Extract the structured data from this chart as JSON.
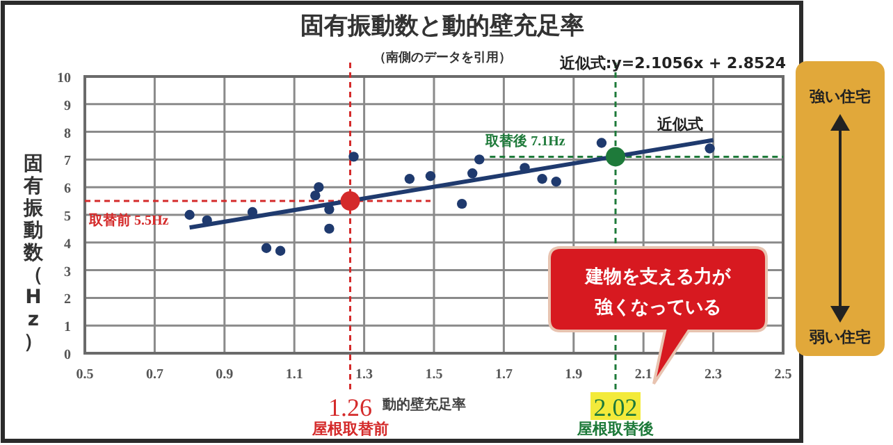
{
  "chart_data": {
    "type": "scatter",
    "title": "固有振動数と動的壁充足率",
    "subtitle": "（南側のデータを引用）",
    "xlabel": "動的壁充足率",
    "ylabel": "固有振動数（Hz）",
    "xlim": [
      0.5,
      2.5
    ],
    "xticks": [
      0.5,
      0.7,
      0.9,
      1.1,
      1.3,
      1.5,
      1.7,
      1.9,
      2.1,
      2.3,
      2.5
    ],
    "ylim": [
      0,
      10
    ],
    "yticks": [
      0,
      1,
      2,
      3,
      4,
      5,
      6,
      7,
      8,
      9,
      10
    ],
    "grid": true,
    "marker": "circle",
    "series": [
      {
        "color": "#1f3a6e",
        "x": [
          0.8,
          0.85,
          0.98,
          1.02,
          1.06,
          1.16,
          1.17,
          1.2,
          1.2,
          1.27,
          1.43,
          1.49,
          1.58,
          1.61,
          1.63,
          1.76,
          1.81,
          1.85,
          1.98,
          2.29
        ],
        "values": [
          5.0,
          4.8,
          5.1,
          3.8,
          3.7,
          5.7,
          6.0,
          5.2,
          4.5,
          7.1,
          6.3,
          6.4,
          5.4,
          6.5,
          7.0,
          6.7,
          6.3,
          6.2,
          7.6,
          7.4
        ]
      },
      {
        "type": "line",
        "name": "近似式",
        "marker": "none",
        "color": "#1f3a6e",
        "x": [
          0.8,
          2.3
        ],
        "values": [
          4.54,
          7.7
        ]
      },
      {
        "type": "scatter",
        "color": "#d42a2a",
        "x": [
          1.26
        ],
        "values": [
          5.5
        ]
      },
      {
        "type": "scatter",
        "color": "#1e7a3a",
        "x": [
          2.02
        ],
        "values": [
          7.1
        ]
      }
    ],
    "ref_lines": [
      {
        "axis": "x",
        "value": 1.26,
        "label": "1.26",
        "color": "#d42a2a",
        "line_style": "dashed"
      },
      {
        "axis": "y",
        "value": 5.5,
        "label": "取替前 5.5Hz",
        "color": "#d42a2a",
        "line_style": "dashed"
      },
      {
        "axis": "x",
        "value": 2.02,
        "label": "2.02",
        "color": "#1e7a3a",
        "line_style": "dashed"
      },
      {
        "axis": "y",
        "value": 7.1,
        "label": "取替後 7.1Hz",
        "color": "#1e7a3a",
        "line_style": "dashed"
      }
    ],
    "annotations": [
      "屋根取替前",
      "屋根取替後",
      "近似式:y=2.1056x + 2.8524",
      "建物を支える力が強くなっている",
      "強い住宅",
      "弱い住宅"
    ]
  }
}
